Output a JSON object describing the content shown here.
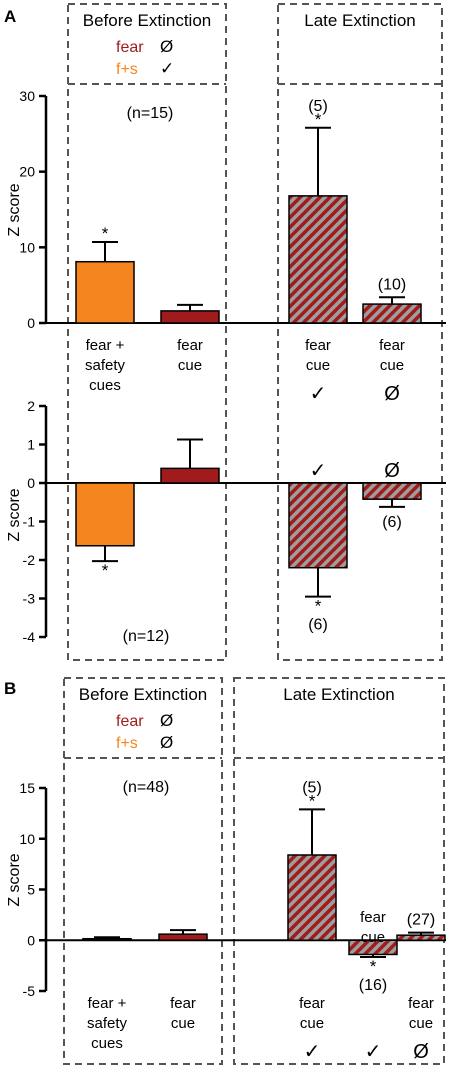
{
  "panel_labels": {
    "a": "A",
    "b": "B"
  },
  "colors": {
    "fear": "#a01c1c",
    "fear_safety": "#f5861f",
    "axis": "#000000",
    "box": "#555555"
  },
  "legend": {
    "fear_label": "fear",
    "fs_label": "f+s"
  },
  "symbols": {
    "check": "✓",
    "none": "Ø"
  },
  "section_titles": {
    "before": "Before Extinction",
    "late": "Late Extinction"
  },
  "chart_data": [
    {
      "id": "A-top",
      "type": "bar",
      "ylabel": "Z score",
      "ylim": [
        0,
        30
      ],
      "yticks": [
        0,
        10,
        20,
        30
      ],
      "n_label": "(n=15)",
      "legend_marks": {
        "fear": "Ø",
        "fs": "✓"
      },
      "categories": [
        "fear + safety cues",
        "fear cue",
        "fear cue",
        "fear cue"
      ],
      "bars": [
        {
          "value": 8.1,
          "error": 2.6,
          "style": "orange",
          "star": "*",
          "n": "",
          "cat": [
            "fear +",
            "safety",
            "cues"
          ],
          "mark": ""
        },
        {
          "value": 1.6,
          "error": 0.8,
          "style": "red",
          "star": "",
          "n": "",
          "cat": [
            "fear",
            "cue"
          ],
          "mark": ""
        },
        {
          "value": 16.8,
          "error": 9.0,
          "style": "hatch",
          "star": "*",
          "n": "(5)",
          "cat": [
            "fear",
            "cue"
          ],
          "mark": "✓"
        },
        {
          "value": 2.5,
          "error": 0.9,
          "style": "hatch",
          "star": "",
          "n": "(10)",
          "cat": [
            "fear",
            "cue"
          ],
          "mark": "Ø"
        }
      ]
    },
    {
      "id": "A-bottom",
      "type": "bar",
      "ylabel": "Z score",
      "ylim": [
        -4,
        2
      ],
      "yticks": [
        2,
        1,
        0,
        -1,
        -2,
        -3,
        -4
      ],
      "n_label": "(n=12)",
      "bars": [
        {
          "value": -1.63,
          "error": 0.4,
          "style": "orange",
          "star": "*",
          "n": "",
          "mark_above": ""
        },
        {
          "value": 0.38,
          "error": 0.75,
          "style": "red",
          "star": "",
          "n": "",
          "mark_above": ""
        },
        {
          "value": -2.2,
          "error": 0.75,
          "style": "hatch",
          "star": "*",
          "n": "(6)",
          "mark_above": "✓"
        },
        {
          "value": -0.42,
          "error": 0.2,
          "style": "hatch",
          "star": "",
          "n": "(6)",
          "mark_above": "Ø"
        }
      ]
    },
    {
      "id": "B",
      "type": "bar",
      "ylabel": "Z score",
      "ylim": [
        -5,
        15
      ],
      "yticks": [
        15,
        10,
        5,
        0,
        -5
      ],
      "n_label": "(n=48)",
      "legend_marks": {
        "fear": "Ø",
        "fs": "Ø"
      },
      "bars": [
        {
          "value": 0.15,
          "error": 0.15,
          "style": "orange",
          "star": "",
          "n": "",
          "cat": [
            "fear +",
            "safety",
            "cues"
          ],
          "mark": ""
        },
        {
          "value": 0.6,
          "error": 0.4,
          "style": "red",
          "star": "",
          "n": "",
          "cat": [
            "fear",
            "cue"
          ],
          "mark": ""
        },
        {
          "value": 8.4,
          "error": 4.5,
          "style": "hatch",
          "star": "*",
          "n": "(5)",
          "cat": [
            "fear",
            "cue"
          ],
          "mark": "✓"
        },
        {
          "value": -1.4,
          "error": 0.25,
          "style": "hatch",
          "star": "*",
          "n": "(16)",
          "cat": [
            "fear",
            "cue"
          ],
          "mark": "✓"
        },
        {
          "value": 0.5,
          "error": 0.25,
          "style": "hatch",
          "star": "",
          "n": "(27)",
          "cat": [
            "fear",
            "cue"
          ],
          "mark": "Ø"
        }
      ]
    }
  ]
}
